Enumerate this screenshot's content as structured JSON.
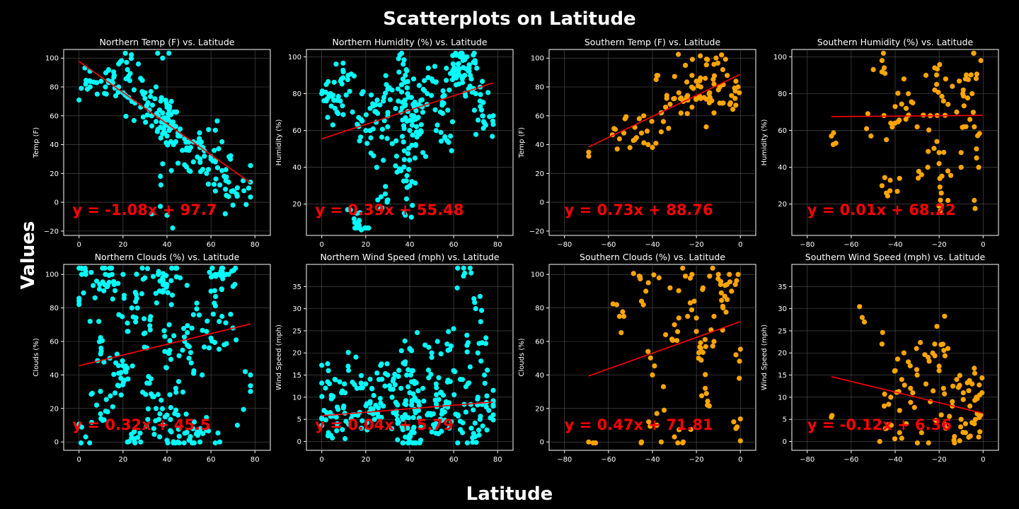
{
  "suptitle": "Scatterplots on Latitude",
  "sup_xlabel": "Latitude",
  "sup_ylabel": "Values",
  "colors": {
    "north": "#00ffff",
    "south": "#ffa500",
    "fit": "#ff0000",
    "background": "#000000"
  },
  "chart_data": [
    {
      "type": "scatter",
      "title": "Northern Temp (F) vs. Latitude",
      "ylabel": "Temp (F)",
      "color": "north",
      "xlim": [
        -7,
        87
      ],
      "ylim": [
        -23,
        106
      ],
      "xticks": [
        0,
        20,
        40,
        60,
        80
      ],
      "yticks": [
        -20,
        0,
        20,
        40,
        60,
        80,
        100
      ],
      "fit": {
        "slope": -1.08,
        "intercept": 97.7,
        "x_range": [
          0,
          78
        ]
      },
      "equation": "y = -1.08x + 97.7",
      "x": [
        1,
        3,
        5,
        8,
        10,
        12,
        15,
        16,
        18,
        20,
        22,
        24,
        25,
        28,
        30,
        32,
        33,
        35,
        36,
        37,
        38,
        38,
        39,
        39,
        40,
        40,
        41,
        41,
        42,
        43,
        44,
        45,
        46,
        47,
        48,
        50,
        52,
        55,
        57,
        60,
        62,
        63,
        65,
        66,
        68,
        70,
        72,
        75,
        78,
        18,
        22,
        28,
        35,
        38,
        40,
        42,
        45,
        55,
        62,
        65,
        68,
        70,
        40,
        37,
        42,
        48,
        52,
        58,
        64,
        33,
        30
      ],
      "y": [
        79,
        82,
        80,
        83,
        84,
        80,
        84,
        88,
        80,
        76,
        73,
        70,
        78,
        66,
        72,
        64,
        60,
        56,
        60,
        52,
        58,
        62,
        48,
        54,
        58,
        46,
        50,
        64,
        54,
        40,
        42,
        48,
        46,
        36,
        44,
        36,
        42,
        38,
        32,
        30,
        28,
        24,
        22,
        18,
        14,
        8,
        10,
        8,
        14,
        96,
        92,
        86,
        80,
        100,
        66,
        70,
        46,
        30,
        50,
        42,
        4,
        -2,
        -9,
        18,
        22,
        26,
        28,
        20,
        12,
        -8,
        76
      ],
      "n": 220
    },
    {
      "type": "scatter",
      "title": "Northern Humidity (%) vs. Latitude",
      "ylabel": "Humidity (%)",
      "color": "north",
      "xlim": [
        -7,
        87
      ],
      "ylim": [
        3,
        104
      ],
      "xticks": [
        0,
        20,
        40,
        60,
        80
      ],
      "yticks": [
        20,
        40,
        60,
        80,
        100
      ],
      "fit": {
        "slope": 0.39,
        "intercept": 55.48,
        "x_range": [
          0,
          78
        ]
      },
      "equation": "y = 0.39x + 55.48",
      "x": [
        2,
        4,
        6,
        9,
        12,
        14,
        15,
        17,
        18,
        20,
        22,
        25,
        27,
        28,
        30,
        32,
        34,
        36,
        37,
        38,
        38,
        39,
        40,
        40,
        41,
        42,
        44,
        46,
        48,
        50,
        52,
        54,
        56,
        58,
        60,
        62,
        63,
        64,
        65,
        66,
        67,
        68,
        70,
        72,
        74,
        78
      ],
      "y": [
        85,
        80,
        72,
        88,
        90,
        70,
        10,
        8,
        6,
        60,
        72,
        40,
        24,
        76,
        62,
        82,
        46,
        70,
        96,
        90,
        14,
        80,
        30,
        60,
        52,
        66,
        74,
        48,
        80,
        88,
        60,
        70,
        56,
        82,
        92,
        96,
        100,
        86,
        90,
        100,
        94,
        88,
        80,
        76,
        64,
        68
      ],
      "n": 330
    },
    {
      "type": "scatter",
      "title": "Southern Temp (F) vs. Latitude",
      "ylabel": "Temp (F)",
      "color": "south",
      "xlim": [
        -87,
        7
      ],
      "ylim": [
        -23,
        106
      ],
      "xticks": [
        -80,
        -60,
        -40,
        -20,
        0
      ],
      "yticks": [
        -20,
        0,
        20,
        40,
        60,
        80,
        100
      ],
      "fit": {
        "slope": 0.73,
        "intercept": 88.76,
        "x_range": [
          -69,
          0
        ]
      },
      "equation": "y = 0.73x + 88.76",
      "x": [
        -69,
        -55,
        -53,
        -48,
        -46,
        -44,
        -42,
        -40,
        -38,
        -36,
        -34,
        -32,
        -30,
        -28,
        -26,
        -24,
        -22,
        -20,
        -18,
        -16,
        -14,
        -12,
        -10,
        -8,
        -6,
        -4,
        -2,
        -1,
        -0.5,
        -15,
        -25,
        -35,
        -45,
        -18,
        -22,
        -12
      ],
      "y": [
        32,
        44,
        48,
        52,
        58,
        60,
        40,
        38,
        88,
        62,
        66,
        68,
        72,
        76,
        70,
        74,
        88,
        84,
        80,
        86,
        76,
        82,
        78,
        92,
        88,
        74,
        84,
        80,
        76,
        99,
        95,
        56,
        48,
        72,
        66,
        62
      ],
      "n": 110
    },
    {
      "type": "scatter",
      "title": "Southern Humidity (%) vs. Latitude",
      "ylabel": "Humidity (%)",
      "color": "south",
      "xlim": [
        -87,
        7
      ],
      "ylim": [
        3,
        104
      ],
      "xticks": [
        -80,
        -60,
        -40,
        -20,
        0
      ],
      "yticks": [
        20,
        40,
        60,
        80,
        100
      ],
      "fit": {
        "slope": 0.01,
        "intercept": 68.22,
        "x_range": [
          -69,
          0
        ]
      },
      "equation": "y = 0.01x + 68.22",
      "x": [
        -69,
        -53,
        -51,
        -46,
        -45,
        -44,
        -42,
        -40,
        -38,
        -36,
        -35,
        -34,
        -32,
        -30,
        -28,
        -26,
        -24,
        -22,
        -21,
        -20,
        -19,
        -18,
        -17,
        -16,
        -14,
        -12,
        -10,
        -9,
        -8,
        -6,
        -5,
        -4,
        -3,
        -2,
        -1,
        -46,
        -44,
        -22,
        -20,
        -16,
        -10,
        -4
      ],
      "y": [
        57,
        61,
        57,
        98,
        94,
        55,
        64,
        73,
        34,
        88,
        72,
        80,
        75,
        62,
        36,
        90,
        68,
        82,
        54,
        48,
        26,
        76,
        88,
        38,
        84,
        70,
        40,
        82,
        88,
        66,
        80,
        22,
        50,
        40,
        98,
        30,
        26,
        94,
        42,
        22,
        48,
        62
      ],
      "n": 110
    },
    {
      "type": "scatter",
      "title": "Northern Clouds (%) vs. Latitude",
      "ylabel": "Clouds (%)",
      "color": "north",
      "xlim": [
        -7,
        87
      ],
      "ylim": [
        -5,
        106
      ],
      "xticks": [
        0,
        20,
        40,
        60,
        80
      ],
      "yticks": [
        0,
        20,
        40,
        60,
        80,
        100
      ],
      "fit": {
        "slope": 0.32,
        "intercept": 45.5,
        "x_range": [
          0,
          78
        ]
      },
      "equation": "y = 0.32x + 45.5",
      "x": [
        2,
        3,
        5,
        6,
        8,
        10,
        12,
        14,
        15,
        16,
        18,
        19,
        20,
        21,
        22,
        24,
        25,
        26,
        28,
        30,
        32,
        34,
        36,
        37,
        38,
        39,
        40,
        40,
        41,
        42,
        44,
        45,
        46,
        48,
        50,
        52,
        55,
        56,
        58,
        60,
        62,
        63,
        64,
        65,
        66,
        67,
        68,
        70,
        72,
        78,
        3,
        8,
        13,
        22,
        30,
        35,
        40,
        45,
        50,
        55,
        60
      ],
      "y": [
        89,
        100,
        72,
        29,
        96,
        56,
        100,
        50,
        100,
        94,
        41,
        38,
        100,
        43,
        66,
        80,
        2,
        88,
        0,
        65,
        35,
        8,
        100,
        90,
        98,
        54,
        94,
        16,
        70,
        82,
        32,
        16,
        98,
        60,
        50,
        76,
        6,
        40,
        66,
        90,
        100,
        100,
        0,
        75,
        58,
        100,
        100,
        68,
        10,
        40,
        3,
        22,
        18,
        0,
        98,
        20,
        1,
        0,
        1,
        0,
        62
      ],
      "n": 320
    },
    {
      "type": "scatter",
      "title": "Northern Wind Speed (mph) vs. Latitude",
      "ylabel": "Wind Speed (mph)",
      "color": "north",
      "xlim": [
        -7,
        87
      ],
      "ylim": [
        -2,
        40
      ],
      "xticks": [
        0,
        20,
        40,
        60,
        80
      ],
      "yticks": [
        0,
        5,
        10,
        15,
        20,
        25,
        30,
        35
      ],
      "fit": {
        "slope": 0.04,
        "intercept": 5.79,
        "x_range": [
          0,
          78
        ]
      },
      "equation": "y = 0.04x + 5.79",
      "x": [
        1,
        3,
        3,
        5,
        7,
        9,
        10,
        12,
        14,
        16,
        18,
        20,
        22,
        24,
        26,
        28,
        30,
        32,
        34,
        36,
        37,
        38,
        38,
        39,
        40,
        40,
        41,
        42,
        44,
        46,
        48,
        50,
        52,
        54,
        56,
        58,
        60,
        62,
        64,
        65,
        66,
        68,
        70,
        71,
        72,
        74,
        76,
        78,
        64,
        71,
        41,
        44,
        52,
        57
      ],
      "y": [
        7,
        16,
        2,
        10,
        4,
        11,
        8,
        17,
        6,
        12,
        3,
        13,
        9,
        5,
        14,
        8,
        15,
        10,
        6,
        12,
        5,
        1,
        18,
        3,
        21,
        0,
        9,
        2,
        7,
        12,
        6,
        19,
        4,
        11,
        8,
        3,
        16,
        6,
        14,
        38,
        24,
        3,
        30,
        10,
        5,
        15,
        7,
        8,
        2,
        20,
        16,
        9,
        13,
        22
      ],
      "n": 320
    },
    {
      "type": "scatter",
      "title": "Southern Clouds (%) vs. Latitude",
      "ylabel": "Clouds (%)",
      "color": "south",
      "xlim": [
        -87,
        7
      ],
      "ylim": [
        -5,
        106
      ],
      "xticks": [
        -80,
        -60,
        -40,
        -20,
        0
      ],
      "yticks": [
        0,
        20,
        40,
        60,
        80,
        100
      ],
      "fit": {
        "slope": 0.47,
        "intercept": 71.81,
        "x_range": [
          -69,
          0
        ]
      },
      "equation": "y = 0.47x + 71.81",
      "x": [
        -69,
        -55,
        -53,
        -46,
        -45,
        -43,
        -42,
        -40,
        -38,
        -37,
        -36,
        -35,
        -34,
        -32,
        -30,
        -28,
        -26,
        -25,
        -24,
        -22,
        -21,
        -20,
        -19,
        -18,
        -17,
        -16,
        -15,
        -14,
        -12,
        -10,
        -9,
        -8,
        -6,
        -5,
        -4,
        -3,
        -2,
        -1,
        -0.5,
        -45,
        -38,
        -30,
        -20,
        -12,
        -2
      ],
      "y": [
        0,
        75,
        75,
        99,
        84,
        90,
        54,
        40,
        17,
        98,
        0,
        33,
        64,
        92,
        3,
        74,
        0,
        99,
        75,
        100,
        84,
        74,
        50,
        56,
        92,
        32,
        22,
        99,
        75,
        100,
        94,
        81,
        85,
        100,
        90,
        12,
        8,
        100,
        38,
        0,
        10,
        70,
        66,
        60,
        52
      ],
      "n": 110
    },
    {
      "type": "scatter",
      "title": "Southern Wind Speed (mph) vs. Latitude",
      "ylabel": "Wind Speed (mph)",
      "color": "south",
      "xlim": [
        -87,
        7
      ],
      "ylim": [
        -2,
        40
      ],
      "xticks": [
        -80,
        -60,
        -40,
        -20,
        0
      ],
      "yticks": [
        0,
        5,
        10,
        15,
        20,
        25,
        30,
        35
      ],
      "fit": {
        "slope": -0.12,
        "intercept": 6.36,
        "x_range": [
          -69,
          0
        ]
      },
      "equation": "y = -0.12x + 6.36",
      "x": [
        -69,
        -55,
        -54,
        -46,
        -45,
        -44,
        -42,
        -40,
        -38,
        -37,
        -36,
        -35,
        -34,
        -32,
        -30,
        -28,
        -26,
        -25,
        -24,
        -22,
        -21,
        -20,
        -19,
        -18,
        -17,
        -16,
        -14,
        -12,
        -10,
        -9,
        -8,
        -6,
        -5,
        -4,
        -3,
        -2,
        -1,
        -0.5,
        -44,
        -38,
        -33,
        -20,
        -14,
        -8
      ],
      "y": [
        5.5,
        28,
        27,
        22,
        8,
        3,
        10,
        16,
        7,
        14,
        20,
        4,
        18,
        11,
        15,
        2,
        13,
        19,
        9,
        22,
        26,
        17,
        6,
        12,
        3,
        21,
        9,
        14,
        5,
        11,
        2,
        8,
        13,
        4,
        10,
        1,
        6,
        11,
        3,
        2,
        12,
        16,
        8,
        4
      ],
      "n": 110
    }
  ]
}
